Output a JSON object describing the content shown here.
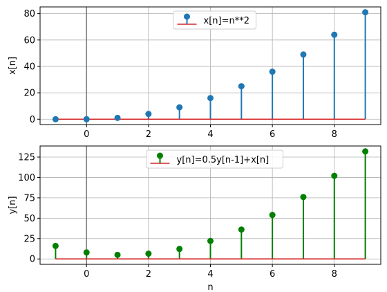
{
  "chart_data": [
    {
      "type": "stem",
      "x": [
        -1,
        0,
        1,
        2,
        3,
        4,
        5,
        6,
        7,
        8,
        9
      ],
      "series": [
        {
          "name": "x[n]=n**2",
          "values": [
            0,
            0,
            1,
            4,
            9,
            16,
            25,
            36,
            49,
            64,
            81
          ]
        }
      ],
      "xlabel": "",
      "ylabel": "x[n]",
      "xlim": [
        -1.5,
        9.5
      ],
      "ylim": [
        -4.05,
        85.05
      ],
      "xticks": [
        0,
        2,
        4,
        6,
        8
      ],
      "yticks": [
        0,
        20,
        40,
        60,
        80
      ],
      "grid": true,
      "legend": "upper center",
      "marker_color": "#1f77b4",
      "stem_color": "#1f77b4",
      "baseline_color": "#d62728",
      "vline_x": 0,
      "vline_color": "#808080"
    },
    {
      "type": "stem",
      "x": [
        -1,
        0,
        1,
        2,
        3,
        4,
        5,
        6,
        7,
        8,
        9
      ],
      "series": [
        {
          "name": "y[n]=0.5y[n-1]+x[n]",
          "values": [
            16,
            8,
            5,
            6.5,
            12.25,
            22.1,
            36.1,
            54.0,
            76.0,
            102.0,
            132.0
          ]
        }
      ],
      "xlabel": "n",
      "ylabel": "y[n]",
      "xlim": [
        -1.5,
        9.5
      ],
      "ylim": [
        -6.6,
        138.6
      ],
      "xticks": [
        0,
        2,
        4,
        6,
        8
      ],
      "yticks": [
        0,
        25,
        50,
        75,
        100,
        125
      ],
      "grid": true,
      "legend": "upper center",
      "marker_color": "#008000",
      "stem_color": "#008000",
      "baseline_color": "#d62728",
      "vline_x": 0,
      "vline_color": "#808080"
    }
  ]
}
